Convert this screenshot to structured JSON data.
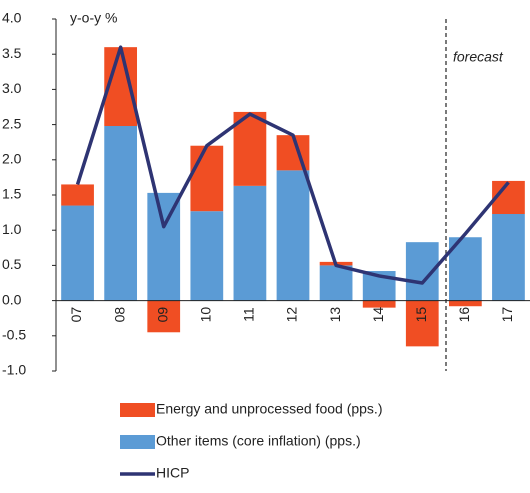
{
  "chart_data": {
    "type": "bar",
    "y_label": "y-o-y %",
    "annotation": "forecast",
    "categories": [
      "07",
      "08",
      "09",
      "10",
      "11",
      "12",
      "13",
      "14",
      "15",
      "16",
      "17"
    ],
    "series": [
      {
        "name": "Other items (core inflation) (pps.)",
        "color": "#5b9bd5",
        "type": "bar",
        "values": [
          1.35,
          2.48,
          1.53,
          1.27,
          1.63,
          1.85,
          0.5,
          0.42,
          0.83,
          0.9,
          1.23
        ]
      },
      {
        "name": "Energy and unprocessed food (pps.)",
        "color": "#f04e23",
        "type": "bar",
        "values": [
          0.3,
          1.12,
          -0.45,
          0.93,
          1.05,
          0.5,
          0.05,
          -0.1,
          -0.65,
          -0.08,
          0.47
        ]
      },
      {
        "name": "HICP",
        "color": "#2e3473",
        "type": "line",
        "values": [
          1.65,
          3.6,
          1.05,
          2.2,
          2.65,
          2.35,
          0.5,
          0.35,
          0.25,
          0.95,
          1.68
        ]
      }
    ],
    "ylim": [
      -1,
      4
    ],
    "yticks": [
      {
        "value": 4,
        "label": "4.0"
      },
      3.5,
      {
        "value": 3,
        "label": "3.0"
      },
      2.5,
      {
        "value": 2,
        "label": "2.0"
      },
      1.5,
      {
        "value": 1,
        "label": "1.0"
      },
      0.5,
      {
        "value": 0,
        "label": "0.0"
      },
      -0.5,
      {
        "value": -1,
        "label": "-1.0"
      }
    ]
  }
}
